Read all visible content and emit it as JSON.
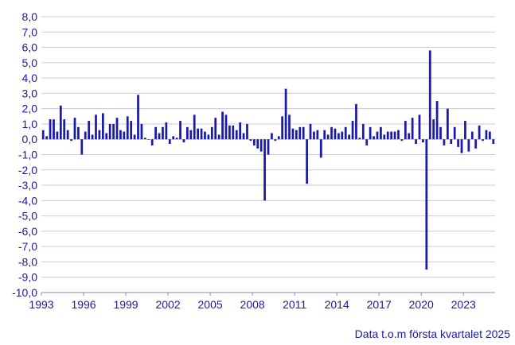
{
  "chart_data": {
    "type": "bar",
    "title": "",
    "xlabel": "",
    "ylabel": "",
    "ylim": [
      -10,
      8
    ],
    "ytick_step": 1,
    "yticks": [
      "-10,0",
      "-9,0",
      "-8,0",
      "-7,0",
      "-6,0",
      "-5,0",
      "-4,0",
      "-3,0",
      "-2,0",
      "-1,0",
      "0,0",
      "1,0",
      "2,0",
      "3,0",
      "4,0",
      "5,0",
      "6,0",
      "7,0",
      "8,0"
    ],
    "xticks": [
      "1993",
      "1996",
      "1999",
      "2002",
      "2005",
      "2008",
      "2011",
      "2014",
      "2017",
      "2020",
      "2023"
    ],
    "start_year": 1993,
    "bar_color": "#1a1aa6",
    "grid_color": "#c9c9dd",
    "years": [
      {
        "year": 1993,
        "values": [
          0.6,
          0.2,
          1.3,
          1.3
        ]
      },
      {
        "year": 1994,
        "values": [
          0.5,
          2.2,
          1.3,
          0.6
        ]
      },
      {
        "year": 1995,
        "values": [
          -0.1,
          1.4,
          0.8,
          -1.0
        ]
      },
      {
        "year": 1996,
        "values": [
          0.5,
          1.2,
          0.3,
          1.6
        ]
      },
      {
        "year": 1997,
        "values": [
          0.6,
          1.7,
          0.4,
          1.0
        ]
      },
      {
        "year": 1998,
        "values": [
          1.0,
          1.4,
          0.6,
          0.5
        ]
      },
      {
        "year": 1999,
        "values": [
          1.5,
          1.2,
          0.3,
          2.9
        ]
      },
      {
        "year": 2000,
        "values": [
          1.0,
          0.1,
          0.0,
          -0.4
        ]
      },
      {
        "year": 2001,
        "values": [
          0.8,
          0.4,
          0.8,
          1.1
        ]
      },
      {
        "year": 2002,
        "values": [
          -0.3,
          0.2,
          0.1,
          1.2
        ]
      },
      {
        "year": 2003,
        "values": [
          -0.2,
          0.8,
          0.6,
          1.6
        ]
      },
      {
        "year": 2004,
        "values": [
          0.7,
          0.7,
          0.5,
          0.3
        ]
      },
      {
        "year": 2005,
        "values": [
          0.8,
          1.4,
          0.3,
          1.8
        ]
      },
      {
        "year": 2006,
        "values": [
          1.6,
          0.9,
          0.9,
          0.6
        ]
      },
      {
        "year": 2007,
        "values": [
          1.1,
          0.4,
          1.0,
          -0.1
        ]
      },
      {
        "year": 2008,
        "values": [
          -0.4,
          -0.6,
          -0.8,
          -4.0
        ]
      },
      {
        "year": 2009,
        "values": [
          -1.0,
          0.4,
          -0.1,
          0.2
        ]
      },
      {
        "year": 2010,
        "values": [
          1.5,
          3.3,
          1.6,
          0.7
        ]
      },
      {
        "year": 2011,
        "values": [
          0.6,
          0.8,
          0.8,
          -2.9
        ]
      },
      {
        "year": 2012,
        "values": [
          1.0,
          0.5,
          0.6,
          -1.2
        ]
      },
      {
        "year": 2013,
        "values": [
          0.6,
          0.3,
          0.8,
          0.7
        ]
      },
      {
        "year": 2014,
        "values": [
          0.4,
          0.5,
          0.8,
          0.3
        ]
      },
      {
        "year": 2015,
        "values": [
          1.2,
          2.3,
          0.1,
          1.0
        ]
      },
      {
        "year": 2016,
        "values": [
          -0.4,
          0.8,
          0.2,
          0.5
        ]
      },
      {
        "year": 2017,
        "values": [
          0.8,
          0.3,
          0.5,
          0.5
        ]
      },
      {
        "year": 2018,
        "values": [
          0.5,
          0.6,
          -0.1,
          1.2
        ]
      },
      {
        "year": 2019,
        "values": [
          0.4,
          1.4,
          -0.3,
          1.6
        ]
      },
      {
        "year": 2020,
        "values": [
          -0.2,
          -8.5,
          5.8,
          1.3
        ]
      },
      {
        "year": 2021,
        "values": [
          2.5,
          0.8,
          -0.4,
          2.0
        ]
      },
      {
        "year": 2022,
        "values": [
          -0.3,
          0.8,
          -0.5,
          -0.9
        ]
      },
      {
        "year": 2023,
        "values": [
          1.2,
          -0.8,
          0.5,
          -0.6
        ]
      },
      {
        "year": 2024,
        "values": [
          0.9,
          -0.1,
          0.6,
          0.5
        ]
      },
      {
        "year": 2025,
        "values": [
          -0.3
        ]
      }
    ]
  },
  "note": "Data t.o.m första kvartalet 2025"
}
